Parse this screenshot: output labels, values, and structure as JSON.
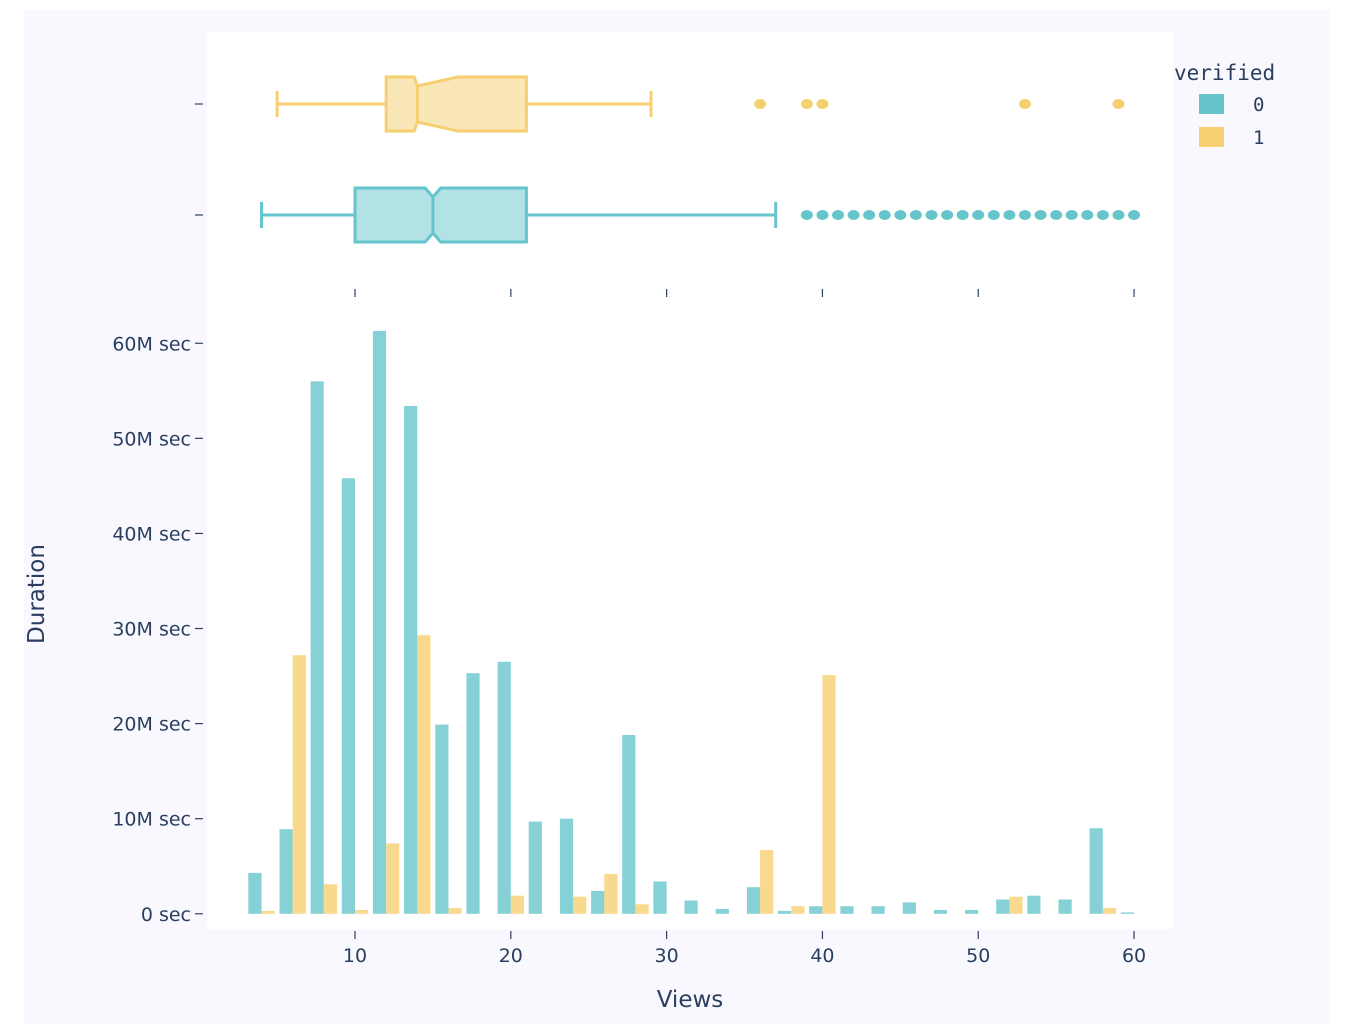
{
  "colors": {
    "verified_0": "#66c5cc",
    "verified_1": "#f6cf71",
    "paper_bg": "#f8f8fe",
    "plot_bg": "#ffffff",
    "text": "#2a3f5f",
    "tick": "#2a3f5f"
  },
  "chart_data": {
    "type": "bar",
    "subtype": "histogram with marginal box plot",
    "title": "",
    "xlabel": "Views",
    "ylabel": "Duration",
    "xlim": [
      0.5,
      62.5
    ],
    "ylim": [
      -1600000,
      63500000
    ],
    "x_tick_values": [
      10,
      20,
      30,
      40,
      50,
      60
    ],
    "x_tick_labels": [
      "10",
      "20",
      "30",
      "40",
      "50",
      "60"
    ],
    "y_tick_values": [
      0,
      10000000,
      20000000,
      30000000,
      40000000,
      50000000,
      60000000
    ],
    "y_tick_labels": [
      "0 sec",
      "10M sec",
      "20M sec",
      "30M sec",
      "40M sec",
      "50M sec",
      "60M sec"
    ],
    "grid": false,
    "legend": {
      "title": "verified",
      "placement": "top-right",
      "entries": [
        "0",
        "1"
      ]
    },
    "categories": [
      4,
      6,
      8,
      10,
      12,
      14,
      16,
      18,
      20,
      22,
      24,
      26,
      28,
      30,
      32,
      34,
      36,
      38,
      40,
      42,
      44,
      46,
      48,
      50,
      52,
      54,
      56,
      58,
      60
    ],
    "series": [
      {
        "name": "0",
        "values": [
          4300000,
          8900000,
          56000000,
          45800000,
          61300000,
          53400000,
          19900000,
          25300000,
          26500000,
          9700000,
          10000000,
          2400000,
          18800000,
          3400000,
          1400000,
          500000,
          2800000,
          300000,
          800000,
          800000,
          800000,
          1200000,
          400000,
          400000,
          1500000,
          1900000,
          1500000,
          9000000,
          150000
        ]
      },
      {
        "name": "1",
        "values": [
          300000,
          27200000,
          3100000,
          400000,
          7400000,
          29300000,
          600000,
          0,
          1900000,
          0,
          1800000,
          4200000,
          1000000,
          0,
          0,
          0,
          6700000,
          800000,
          25100000,
          0,
          0,
          0,
          0,
          0,
          1800000,
          0,
          0,
          600000,
          0
        ]
      }
    ],
    "box_plots": [
      {
        "name": "1",
        "notched": true,
        "lower_whisker": 5,
        "q1": 12,
        "median": 14,
        "notch_low": 13.8,
        "notch_high": 16.6,
        "q3": 21,
        "upper_whisker": 29,
        "outliers": [
          36,
          39,
          40,
          53,
          59
        ]
      },
      {
        "name": "0",
        "notched": true,
        "lower_whisker": 4,
        "q1": 10,
        "median": 15,
        "notch_low": 14.5,
        "notch_high": 15.5,
        "q3": 21,
        "upper_whisker": 37,
        "outliers": [
          39,
          40,
          41,
          42,
          43,
          44,
          45,
          46,
          47,
          48,
          49,
          50,
          51,
          52,
          53,
          54,
          55,
          56,
          57,
          58,
          59,
          60
        ]
      }
    ]
  }
}
